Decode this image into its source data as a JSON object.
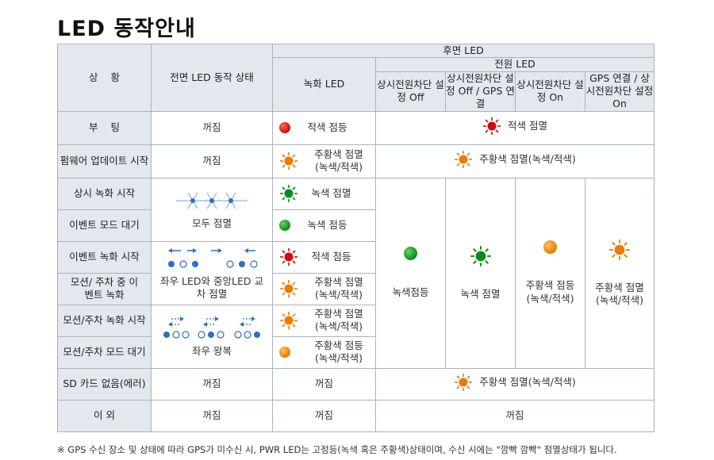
{
  "title": "LED 동작안내",
  "headers": {
    "state": "상    황",
    "front": "전면 LED 동작 상태",
    "rear": "후면 LED",
    "rec": "녹화 LED",
    "power": "전원 LED",
    "p1": "상시전원차단 설정 Off",
    "p2": "상시전원차단 설정 Off / GPS 연결",
    "p3": "상시전원차단 설정 On",
    "p4": "GPS 연결 / 상시전원차단 설정 On"
  },
  "rows": {
    "booting": {
      "label": "부    팅",
      "front": "꺼짐",
      "rec": "적색 점등",
      "power": "적색 점멸"
    },
    "firmware": {
      "label": "펌웨어 업데이트 시작",
      "front": "꺼짐",
      "rec": "주황색 점멸 (녹색/적색)",
      "power": "주황색 점멸(녹색/적색)"
    },
    "normal_start": {
      "label": "상시 녹화 시작",
      "rec": "녹색 점멸"
    },
    "event_wait": {
      "label": "이벤트 모드 대기",
      "front": "모두 점멸",
      "rec": "녹색 점등"
    },
    "event_start": {
      "label": "이벤트 녹화 시작",
      "rec": "적색 점등"
    },
    "motion_event": {
      "label": "모션/ 주차 중 이벤트 녹화",
      "front": "좌우 LED와 중앙LED 교차 점멸",
      "rec": "주황색 점멸 (녹색/적색)"
    },
    "motion_start": {
      "label": "모션/주차 녹화 시작",
      "rec": "주황색 점멸 (녹색/적색)"
    },
    "motion_wait": {
      "label": "모션/주차 모드 대기",
      "front": "좌우 왕복",
      "rec": "주황색 점등 (녹색/적색)"
    },
    "sd": {
      "label": "SD 카드 없음(에러)",
      "front": "꺼짐",
      "rec": "꺼짐",
      "power": "주황색 점멸(녹색/적색)"
    },
    "other": {
      "label": "이 외",
      "front": "꺼짐",
      "rec": "꺼짐",
      "power": "꺼짐"
    }
  },
  "power_group": {
    "p1": "녹색점등",
    "p2": "녹색 점멸",
    "p3": "주황색 점등 (녹색/적색)",
    "p4": "주황색 점멸 (녹색/적색)"
  },
  "footnote": "※ GPS 수신 장소 및 상태에 따라 GPS가 미수신 시, PWR LED는 고정등(녹색 혹은 주황색)상태이며, 수신 시에는 \"깜빡 깜빡\" 점멸상태가 됩니다.",
  "colors": {
    "red": "#d10a0a",
    "green": "#0a8a1a",
    "orange": "#ea7b00",
    "blue": "#2e6fc0",
    "header_bg": "#e3e8ee"
  }
}
